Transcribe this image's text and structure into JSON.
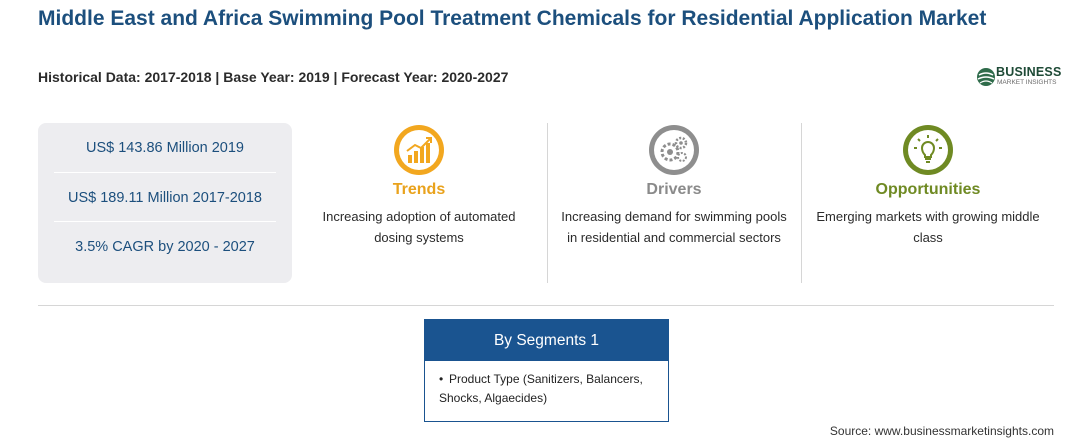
{
  "header": {
    "title": "Middle East and Africa Swimming Pool Treatment Chemicals for Residential Application Market",
    "subtitle": "Historical Data: 2017-2018 | Base Year: 2019 | Forecast Year: 2020-2027"
  },
  "logo": {
    "name": "BUSINESS",
    "tagline": "MARKET INSIGHTS",
    "icon": "globe-logo-icon"
  },
  "stats": [
    "US$ 143.86 Million 2019",
    "US$ 189.11 Million 2017-2018",
    "3.5% CAGR by 2020 - 2027"
  ],
  "trends": {
    "title": "Trends",
    "text": "Increasing adoption of automated dosing systems",
    "icon": "rising-chart-icon",
    "color": "#e9a21c"
  },
  "drivers": {
    "title": "Drivers",
    "text": "Increasing demand for swimming pools in residential and commercial sectors",
    "icon": "gears-icon",
    "color": "#8a8a8a"
  },
  "opportunities": {
    "title": "Opportunities",
    "text": "Emerging markets with growing middle class",
    "icon": "lightbulb-icon",
    "color": "#6f8a23"
  },
  "segments": {
    "title": "By Segments 1",
    "items": [
      "Product Type (Sanitizers, Balancers, Shocks, Algaecides)"
    ]
  },
  "source": "Source: www.businessmarketinsights.com"
}
